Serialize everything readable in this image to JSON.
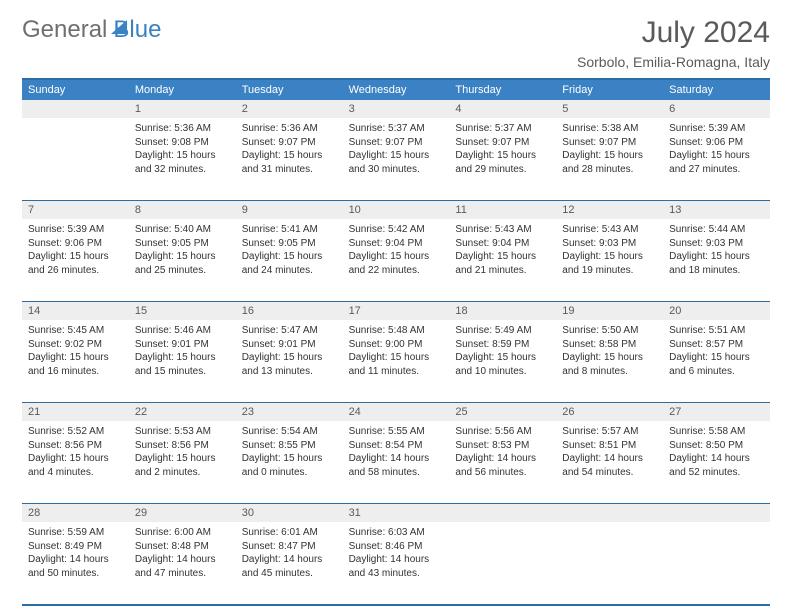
{
  "brand": {
    "part1": "General",
    "part2": "Blue"
  },
  "title": "July 2024",
  "location": "Sorbolo, Emilia-Romagna, Italy",
  "colors": {
    "header_bg": "#3b82c4",
    "header_text": "#ffffff",
    "border": "#2e6ca4",
    "daynum_bg": "#eeeeee",
    "text": "#333333",
    "muted": "#5a5a5a"
  },
  "typography": {
    "title_fontsize": 30,
    "location_fontsize": 14,
    "dow_fontsize": 11,
    "cell_fontsize": 10
  },
  "dow": [
    "Sunday",
    "Monday",
    "Tuesday",
    "Wednesday",
    "Thursday",
    "Friday",
    "Saturday"
  ],
  "weeks": [
    {
      "nums": [
        "",
        "1",
        "2",
        "3",
        "4",
        "5",
        "6"
      ],
      "cells": [
        {
          "sunrise": "",
          "sunset": "",
          "daylight": ""
        },
        {
          "sunrise": "Sunrise: 5:36 AM",
          "sunset": "Sunset: 9:08 PM",
          "daylight": "Daylight: 15 hours and 32 minutes."
        },
        {
          "sunrise": "Sunrise: 5:36 AM",
          "sunset": "Sunset: 9:07 PM",
          "daylight": "Daylight: 15 hours and 31 minutes."
        },
        {
          "sunrise": "Sunrise: 5:37 AM",
          "sunset": "Sunset: 9:07 PM",
          "daylight": "Daylight: 15 hours and 30 minutes."
        },
        {
          "sunrise": "Sunrise: 5:37 AM",
          "sunset": "Sunset: 9:07 PM",
          "daylight": "Daylight: 15 hours and 29 minutes."
        },
        {
          "sunrise": "Sunrise: 5:38 AM",
          "sunset": "Sunset: 9:07 PM",
          "daylight": "Daylight: 15 hours and 28 minutes."
        },
        {
          "sunrise": "Sunrise: 5:39 AM",
          "sunset": "Sunset: 9:06 PM",
          "daylight": "Daylight: 15 hours and 27 minutes."
        }
      ]
    },
    {
      "nums": [
        "7",
        "8",
        "9",
        "10",
        "11",
        "12",
        "13"
      ],
      "cells": [
        {
          "sunrise": "Sunrise: 5:39 AM",
          "sunset": "Sunset: 9:06 PM",
          "daylight": "Daylight: 15 hours and 26 minutes."
        },
        {
          "sunrise": "Sunrise: 5:40 AM",
          "sunset": "Sunset: 9:05 PM",
          "daylight": "Daylight: 15 hours and 25 minutes."
        },
        {
          "sunrise": "Sunrise: 5:41 AM",
          "sunset": "Sunset: 9:05 PM",
          "daylight": "Daylight: 15 hours and 24 minutes."
        },
        {
          "sunrise": "Sunrise: 5:42 AM",
          "sunset": "Sunset: 9:04 PM",
          "daylight": "Daylight: 15 hours and 22 minutes."
        },
        {
          "sunrise": "Sunrise: 5:43 AM",
          "sunset": "Sunset: 9:04 PM",
          "daylight": "Daylight: 15 hours and 21 minutes."
        },
        {
          "sunrise": "Sunrise: 5:43 AM",
          "sunset": "Sunset: 9:03 PM",
          "daylight": "Daylight: 15 hours and 19 minutes."
        },
        {
          "sunrise": "Sunrise: 5:44 AM",
          "sunset": "Sunset: 9:03 PM",
          "daylight": "Daylight: 15 hours and 18 minutes."
        }
      ]
    },
    {
      "nums": [
        "14",
        "15",
        "16",
        "17",
        "18",
        "19",
        "20"
      ],
      "cells": [
        {
          "sunrise": "Sunrise: 5:45 AM",
          "sunset": "Sunset: 9:02 PM",
          "daylight": "Daylight: 15 hours and 16 minutes."
        },
        {
          "sunrise": "Sunrise: 5:46 AM",
          "sunset": "Sunset: 9:01 PM",
          "daylight": "Daylight: 15 hours and 15 minutes."
        },
        {
          "sunrise": "Sunrise: 5:47 AM",
          "sunset": "Sunset: 9:01 PM",
          "daylight": "Daylight: 15 hours and 13 minutes."
        },
        {
          "sunrise": "Sunrise: 5:48 AM",
          "sunset": "Sunset: 9:00 PM",
          "daylight": "Daylight: 15 hours and 11 minutes."
        },
        {
          "sunrise": "Sunrise: 5:49 AM",
          "sunset": "Sunset: 8:59 PM",
          "daylight": "Daylight: 15 hours and 10 minutes."
        },
        {
          "sunrise": "Sunrise: 5:50 AM",
          "sunset": "Sunset: 8:58 PM",
          "daylight": "Daylight: 15 hours and 8 minutes."
        },
        {
          "sunrise": "Sunrise: 5:51 AM",
          "sunset": "Sunset: 8:57 PM",
          "daylight": "Daylight: 15 hours and 6 minutes."
        }
      ]
    },
    {
      "nums": [
        "21",
        "22",
        "23",
        "24",
        "25",
        "26",
        "27"
      ],
      "cells": [
        {
          "sunrise": "Sunrise: 5:52 AM",
          "sunset": "Sunset: 8:56 PM",
          "daylight": "Daylight: 15 hours and 4 minutes."
        },
        {
          "sunrise": "Sunrise: 5:53 AM",
          "sunset": "Sunset: 8:56 PM",
          "daylight": "Daylight: 15 hours and 2 minutes."
        },
        {
          "sunrise": "Sunrise: 5:54 AM",
          "sunset": "Sunset: 8:55 PM",
          "daylight": "Daylight: 15 hours and 0 minutes."
        },
        {
          "sunrise": "Sunrise: 5:55 AM",
          "sunset": "Sunset: 8:54 PM",
          "daylight": "Daylight: 14 hours and 58 minutes."
        },
        {
          "sunrise": "Sunrise: 5:56 AM",
          "sunset": "Sunset: 8:53 PM",
          "daylight": "Daylight: 14 hours and 56 minutes."
        },
        {
          "sunrise": "Sunrise: 5:57 AM",
          "sunset": "Sunset: 8:51 PM",
          "daylight": "Daylight: 14 hours and 54 minutes."
        },
        {
          "sunrise": "Sunrise: 5:58 AM",
          "sunset": "Sunset: 8:50 PM",
          "daylight": "Daylight: 14 hours and 52 minutes."
        }
      ]
    },
    {
      "nums": [
        "28",
        "29",
        "30",
        "31",
        "",
        "",
        ""
      ],
      "cells": [
        {
          "sunrise": "Sunrise: 5:59 AM",
          "sunset": "Sunset: 8:49 PM",
          "daylight": "Daylight: 14 hours and 50 minutes."
        },
        {
          "sunrise": "Sunrise: 6:00 AM",
          "sunset": "Sunset: 8:48 PM",
          "daylight": "Daylight: 14 hours and 47 minutes."
        },
        {
          "sunrise": "Sunrise: 6:01 AM",
          "sunset": "Sunset: 8:47 PM",
          "daylight": "Daylight: 14 hours and 45 minutes."
        },
        {
          "sunrise": "Sunrise: 6:03 AM",
          "sunset": "Sunset: 8:46 PM",
          "daylight": "Daylight: 14 hours and 43 minutes."
        },
        {
          "sunrise": "",
          "sunset": "",
          "daylight": ""
        },
        {
          "sunrise": "",
          "sunset": "",
          "daylight": ""
        },
        {
          "sunrise": "",
          "sunset": "",
          "daylight": ""
        }
      ]
    }
  ]
}
